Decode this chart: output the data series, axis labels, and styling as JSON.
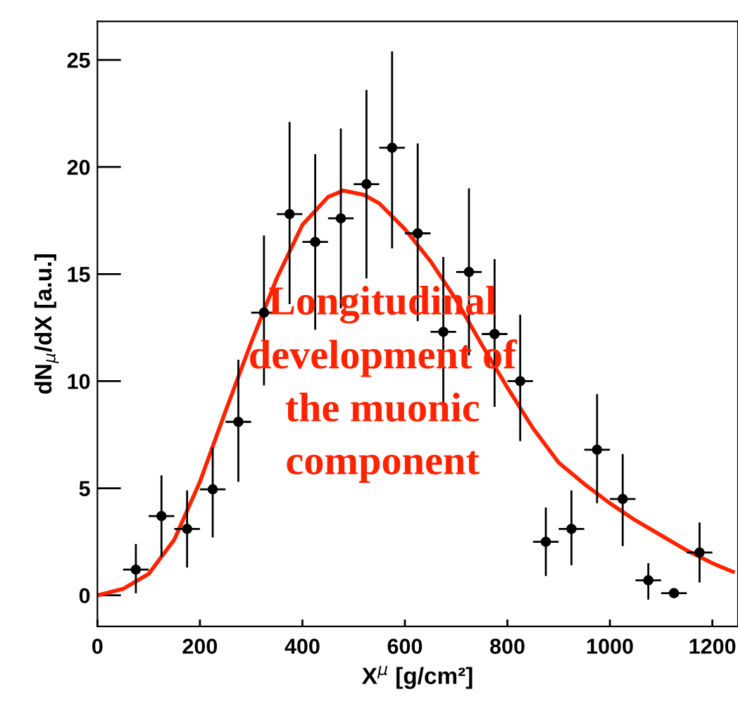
{
  "chart_data": {
    "type": "scatter",
    "xlabel": "X$^{μ}$ [g/cm²]",
    "ylabel": "dN$_{μ}$/dX [a.u.]",
    "xlim": [
      0,
      1250
    ],
    "ylim": [
      -1.45,
      26.8
    ],
    "xticks": [
      0,
      200,
      400,
      600,
      800,
      1000,
      1200
    ],
    "yticks": [
      0,
      5,
      10,
      15,
      20,
      25
    ],
    "grid": false,
    "legend": false,
    "annotations": [
      "Longitudinal\ndevelopment of\nthe muonic\ncomponent"
    ],
    "series": [
      {
        "type": "scatter",
        "color": "#000000",
        "marker": "circle",
        "x": [
          75,
          125,
          175,
          225,
          275,
          325,
          375,
          425,
          475,
          525,
          575,
          625,
          675,
          725,
          775,
          825,
          875,
          925,
          975,
          1025,
          1075,
          1125,
          1175
        ],
        "values": [
          1.2,
          3.7,
          3.1,
          4.95,
          8.1,
          13.2,
          17.8,
          16.5,
          17.6,
          19.2,
          20.9,
          16.9,
          12.3,
          15.1,
          12.2,
          10.0,
          2.5,
          3.1,
          6.8,
          4.5,
          0.7,
          0.1,
          2.0
        ],
        "errors": [
          [
            0.1,
            2.4
          ],
          [
            1.8,
            5.6
          ],
          [
            1.3,
            4.9
          ],
          [
            2.7,
            6.9
          ],
          [
            5.3,
            11.0
          ],
          [
            9.8,
            16.8
          ],
          [
            13.6,
            22.1
          ],
          [
            12.4,
            20.6
          ],
          [
            13.4,
            21.8
          ],
          [
            14.8,
            23.6
          ],
          [
            16.2,
            25.4
          ],
          [
            12.8,
            21.1
          ],
          [
            8.9,
            15.8
          ],
          [
            11.2,
            19.0
          ],
          [
            8.8,
            15.7
          ],
          [
            7.2,
            13.1
          ],
          [
            0.9,
            4.1
          ],
          [
            1.4,
            4.9
          ],
          [
            4.3,
            9.4
          ],
          [
            2.3,
            6.6
          ],
          [
            -0.2,
            1.5
          ],
          [
            -0.1,
            0.3
          ],
          [
            0.6,
            3.4
          ]
        ],
        "xerrors": [
          25,
          25,
          25,
          25,
          25,
          25,
          25,
          25,
          25,
          25,
          25,
          25,
          25,
          25,
          25,
          25,
          25,
          25,
          25,
          25,
          25,
          25,
          25
        ]
      },
      {
        "type": "line",
        "color": "#ff2200",
        "marker": "none",
        "line_style": "solid",
        "x": [
          0,
          50,
          100,
          150,
          200,
          250,
          300,
          350,
          400,
          450,
          480,
          520,
          550,
          600,
          650,
          700,
          750,
          800,
          850,
          900,
          950,
          1000,
          1050,
          1100,
          1150,
          1200,
          1240
        ],
        "values": [
          0,
          0.3,
          1.0,
          2.6,
          5.3,
          8.6,
          11.8,
          14.8,
          17.3,
          18.6,
          18.9,
          18.7,
          18.3,
          17.1,
          15.6,
          13.8,
          11.7,
          9.7,
          7.8,
          6.2,
          5.2,
          4.3,
          3.5,
          2.8,
          2.1,
          1.5,
          1.1
        ]
      }
    ]
  }
}
